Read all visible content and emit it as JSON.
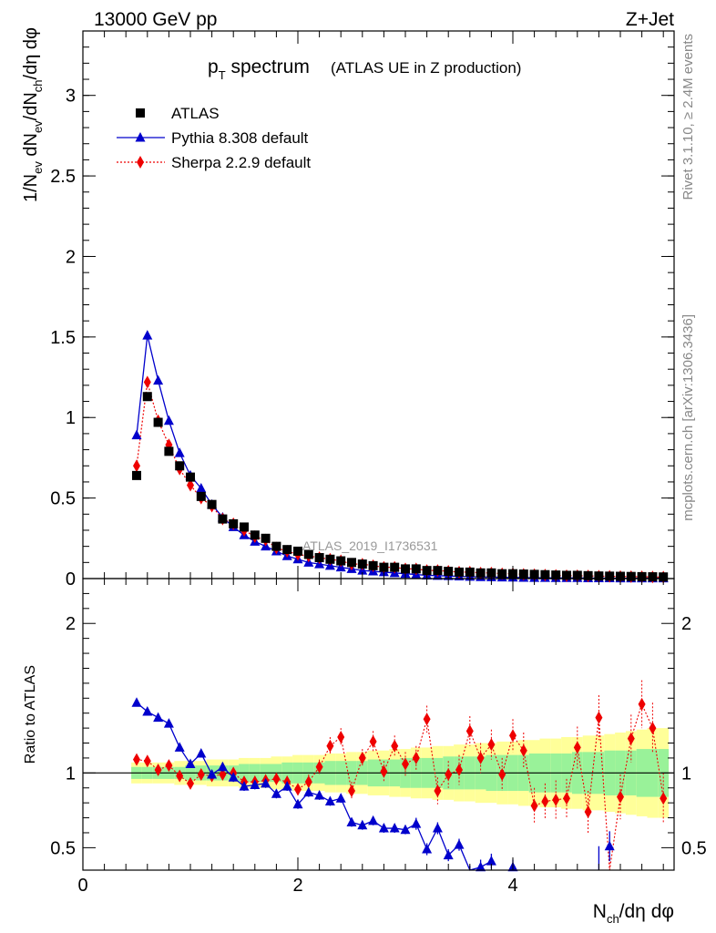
{
  "header": {
    "left": "13000 GeV pp",
    "right": "Z+Jet"
  },
  "title": {
    "main_p": "p",
    "main_sub": "T",
    "main_rest": " spectrum",
    "paren": "(ATLAS UE in Z production)"
  },
  "watermark": "ATLAS_2019_I1736531",
  "side_text": {
    "rivet": "Rivet 3.1.10, ≥ 2.4M events",
    "mcplots": "mcplots.cern.ch [arXiv:1306.3436]"
  },
  "axes": {
    "ylabel_top": "1/N_ev dN_ev/dN_ch/dη dφ",
    "ylabel_top_parts": [
      "1/N",
      "ev",
      " dN",
      "ev",
      "/dN",
      "ch",
      "/dη dφ"
    ],
    "ylabel_bottom": "Ratio to ATLAS",
    "xlabel": "N_ch/dη dφ",
    "xlabel_parts": [
      "N",
      "ch",
      "/dη dφ"
    ],
    "top_yticks": [
      "0",
      "0.5",
      "1",
      "1.5",
      "2",
      "2.5",
      "3"
    ],
    "bottom_yticks": [
      "0.5",
      "1",
      "2"
    ],
    "xticks": [
      "0",
      "2",
      "4"
    ]
  },
  "legend": [
    {
      "label": "ATLAS",
      "color": "#000000",
      "marker": "square"
    },
    {
      "label": "Pythia 8.308 default",
      "color": "#0000cc",
      "marker": "triangle"
    },
    {
      "label": "Sherpa 2.2.9 default",
      "color": "#ee0000",
      "marker": "diamond"
    }
  ],
  "chart_data": {
    "type": "scatter",
    "xlim": [
      0,
      5.5
    ],
    "ylim_top": [
      0,
      3.4
    ],
    "ylim_ratio": [
      0.35,
      2.3
    ],
    "x": [
      0.5,
      0.6,
      0.7,
      0.8,
      0.9,
      1.0,
      1.1,
      1.2,
      1.3,
      1.4,
      1.5,
      1.6,
      1.7,
      1.8,
      1.9,
      2.0,
      2.1,
      2.2,
      2.3,
      2.4,
      2.5,
      2.6,
      2.7,
      2.8,
      2.9,
      3.0,
      3.1,
      3.2,
      3.3,
      3.4,
      3.5,
      3.6,
      3.7,
      3.8,
      3.9,
      4.0,
      4.1,
      4.2,
      4.3,
      4.4,
      4.5,
      4.6,
      4.7,
      4.8,
      4.9,
      5.0,
      5.1,
      5.2,
      5.3,
      5.4
    ],
    "series": [
      {
        "name": "ATLAS",
        "color": "#000000",
        "values": [
          0.64,
          1.13,
          0.97,
          0.79,
          0.7,
          0.63,
          0.51,
          0.46,
          0.37,
          0.34,
          0.32,
          0.27,
          0.25,
          0.2,
          0.18,
          0.17,
          0.15,
          0.13,
          0.12,
          0.11,
          0.1,
          0.09,
          0.08,
          0.07,
          0.07,
          0.06,
          0.06,
          0.05,
          0.05,
          0.045,
          0.04,
          0.04,
          0.035,
          0.035,
          0.03,
          0.03,
          0.028,
          0.026,
          0.024,
          0.022,
          0.02,
          0.02,
          0.018,
          0.016,
          0.015,
          0.014,
          0.013,
          0.012,
          0.011,
          0.01
        ]
      },
      {
        "name": "Pythia 8.308 default",
        "color": "#0000cc",
        "values": [
          0.89,
          1.51,
          1.23,
          0.98,
          0.78,
          0.64,
          0.56,
          0.46,
          0.38,
          0.32,
          0.27,
          0.23,
          0.2,
          0.17,
          0.14,
          0.12,
          0.1,
          0.09,
          0.08,
          0.07,
          0.06,
          0.05,
          0.045,
          0.04,
          0.035,
          0.03,
          0.025,
          0.02,
          0.018,
          0.016,
          0.014,
          0.012,
          0.01,
          0.009,
          0.008,
          0.007,
          0.006,
          0.005,
          0.005,
          0.004,
          0.004,
          0.004,
          0.003,
          0.003,
          0.003,
          0.002,
          0.002,
          0.002,
          0.002,
          0.002
        ]
      },
      {
        "name": "Sherpa 2.2.9 default",
        "color": "#ee0000",
        "values": [
          0.7,
          1.22,
          0.98,
          0.83,
          0.68,
          0.58,
          0.5,
          0.45,
          0.37,
          0.34,
          0.3,
          0.26,
          0.24,
          0.19,
          0.17,
          0.15,
          0.14,
          0.13,
          0.12,
          0.11,
          0.09,
          0.09,
          0.08,
          0.07,
          0.07,
          0.06,
          0.06,
          0.05,
          0.05,
          0.045,
          0.04,
          0.04,
          0.035,
          0.035,
          0.03,
          0.03,
          0.026,
          0.024,
          0.022,
          0.02,
          0.018,
          0.018,
          0.016,
          0.015,
          0.014,
          0.013,
          0.012,
          0.011,
          0.01,
          0.009
        ]
      }
    ],
    "ratio": {
      "pythia": [
        1.47,
        1.41,
        1.37,
        1.33,
        1.17,
        1.06,
        1.13,
        0.99,
        1.04,
        0.97,
        0.91,
        0.92,
        0.93,
        0.86,
        0.91,
        0.79,
        0.87,
        0.85,
        0.81,
        0.83,
        0.67,
        0.65,
        0.68,
        0.63,
        0.63,
        0.62,
        0.66,
        0.49,
        0.63,
        0.45,
        0.52,
        0.33,
        0.37,
        0.41,
        null,
        0.37,
        null,
        null,
        null,
        null,
        null,
        null,
        null,
        null,
        0.51,
        null,
        null,
        null,
        null,
        null
      ],
      "pythia_err": [
        0.02,
        0.02,
        0.02,
        0.02,
        0.02,
        0.02,
        0.02,
        0.03,
        0.03,
        0.03,
        0.03,
        0.03,
        0.03,
        0.03,
        0.03,
        0.03,
        0.03,
        0.03,
        0.03,
        0.03,
        0.03,
        0.03,
        0.03,
        0.03,
        0.03,
        0.03,
        0.04,
        0.04,
        0.04,
        0.04,
        0.04,
        0.05,
        0.05,
        0.05,
        0.0,
        0.05,
        0.0,
        0.0,
        0.0,
        0.0,
        0.0,
        0.0,
        0.0,
        0.0,
        0.1,
        0.0,
        0.0,
        0.0,
        0.0,
        0.0
      ],
      "sherpa": [
        1.09,
        1.08,
        1.02,
        1.05,
        0.98,
        0.93,
        0.99,
        0.98,
        0.99,
        1.0,
        0.94,
        0.94,
        0.95,
        0.96,
        0.94,
        0.89,
        0.94,
        1.04,
        1.18,
        1.24,
        0.88,
        1.1,
        1.21,
        1.01,
        1.18,
        1.06,
        1.1,
        1.36,
        0.88,
        0.99,
        1.02,
        1.28,
        1.1,
        1.19,
        0.99,
        1.25,
        1.15,
        0.78,
        0.81,
        0.82,
        0.83,
        1.17,
        0.74,
        1.37,
        0.35,
        0.84,
        1.23,
        1.46,
        1.3,
        0.83
      ],
      "sherpa_err": [
        0.03,
        0.03,
        0.03,
        0.03,
        0.03,
        0.03,
        0.03,
        0.03,
        0.03,
        0.03,
        0.03,
        0.04,
        0.04,
        0.04,
        0.04,
        0.04,
        0.05,
        0.05,
        0.06,
        0.06,
        0.06,
        0.06,
        0.07,
        0.07,
        0.07,
        0.08,
        0.08,
        0.09,
        0.09,
        0.09,
        0.1,
        0.1,
        0.1,
        0.1,
        0.11,
        0.11,
        0.12,
        0.12,
        0.12,
        0.13,
        0.13,
        0.14,
        0.14,
        0.15,
        0.15,
        0.15,
        0.16,
        0.16,
        0.17,
        0.17
      ],
      "band_green": [
        0.04,
        0.04,
        0.04,
        0.04,
        0.04,
        0.05,
        0.05,
        0.05,
        0.05,
        0.05,
        0.06,
        0.06,
        0.06,
        0.06,
        0.07,
        0.07,
        0.07,
        0.07,
        0.08,
        0.08,
        0.08,
        0.08,
        0.09,
        0.09,
        0.09,
        0.1,
        0.1,
        0.1,
        0.1,
        0.11,
        0.11,
        0.11,
        0.11,
        0.12,
        0.12,
        0.12,
        0.12,
        0.13,
        0.13,
        0.13,
        0.13,
        0.14,
        0.14,
        0.14,
        0.15,
        0.15,
        0.15,
        0.16,
        0.16,
        0.16
      ],
      "band_yellow": [
        0.07,
        0.07,
        0.07,
        0.07,
        0.08,
        0.08,
        0.08,
        0.09,
        0.09,
        0.09,
        0.1,
        0.1,
        0.1,
        0.11,
        0.11,
        0.12,
        0.12,
        0.12,
        0.13,
        0.13,
        0.14,
        0.14,
        0.15,
        0.15,
        0.16,
        0.16,
        0.17,
        0.17,
        0.18,
        0.18,
        0.19,
        0.19,
        0.2,
        0.2,
        0.21,
        0.21,
        0.22,
        0.22,
        0.23,
        0.23,
        0.24,
        0.24,
        0.25,
        0.25,
        0.26,
        0.27,
        0.28,
        0.29,
        0.3,
        0.3
      ]
    }
  }
}
